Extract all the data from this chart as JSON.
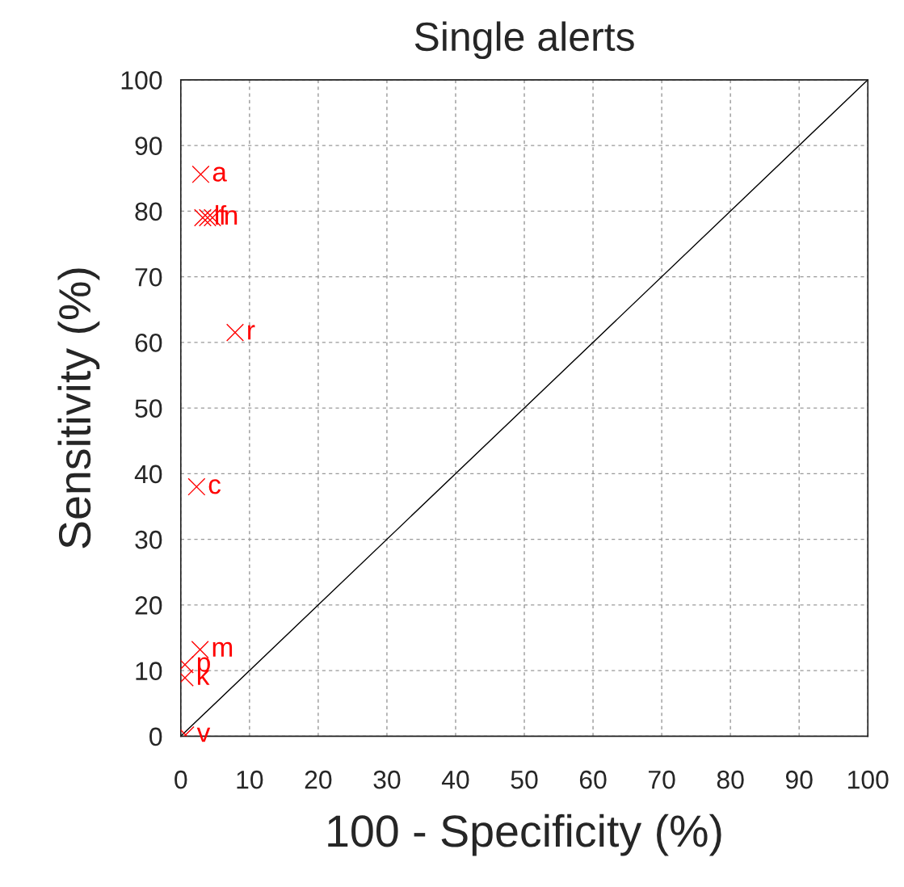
{
  "chart_data": {
    "type": "scatter",
    "title": "Single alerts",
    "xlabel": "100 - Specificity (%)",
    "ylabel": "Sensitivity (%)",
    "xlim": [
      0,
      100
    ],
    "ylim": [
      0,
      100
    ],
    "xticks": [
      0,
      10,
      20,
      30,
      40,
      50,
      60,
      70,
      80,
      90,
      100
    ],
    "yticks": [
      0,
      10,
      20,
      30,
      40,
      50,
      60,
      70,
      80,
      90,
      100
    ],
    "grid": true,
    "series": [
      {
        "marker": "cross",
        "color": "#ff0000",
        "x": [
          2.9,
          3.2,
          3.9,
          4.6,
          7.9,
          2.3,
          2.8,
          0.6,
          0.6,
          0.7
        ],
        "values": [
          85.6,
          79.0,
          79.0,
          79.0,
          61.5,
          38.0,
          13.2,
          10.9,
          8.9,
          0.2
        ],
        "value_labels": [
          "a",
          "l",
          "f",
          "n",
          "r",
          "c",
          "m",
          "p",
          "k",
          "v"
        ]
      },
      {
        "type": "line",
        "color": "#000000",
        "x": [
          0,
          100
        ],
        "values": [
          0,
          100
        ],
        "line_style": "solid"
      }
    ]
  }
}
